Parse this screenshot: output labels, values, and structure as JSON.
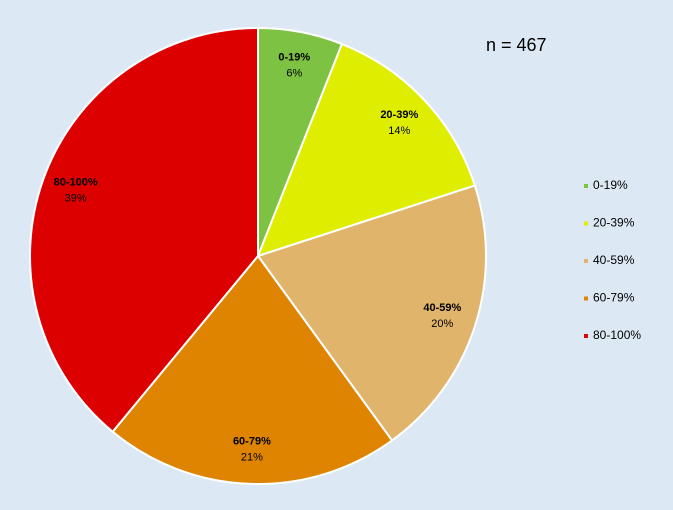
{
  "chart_data": {
    "type": "pie",
    "annotation": "n = 467",
    "categories": [
      "0-19%",
      "20-39%",
      "40-59%",
      "60-79%",
      "80-100%"
    ],
    "values": [
      6,
      14,
      20,
      21,
      39
    ],
    "value_labels": [
      "6%",
      "14%",
      "20%",
      "21%",
      "39%"
    ],
    "colors": [
      "#7dc242",
      "#dfee00",
      "#e0b46b",
      "#de8400",
      "#dd0000"
    ],
    "legend": "right"
  }
}
